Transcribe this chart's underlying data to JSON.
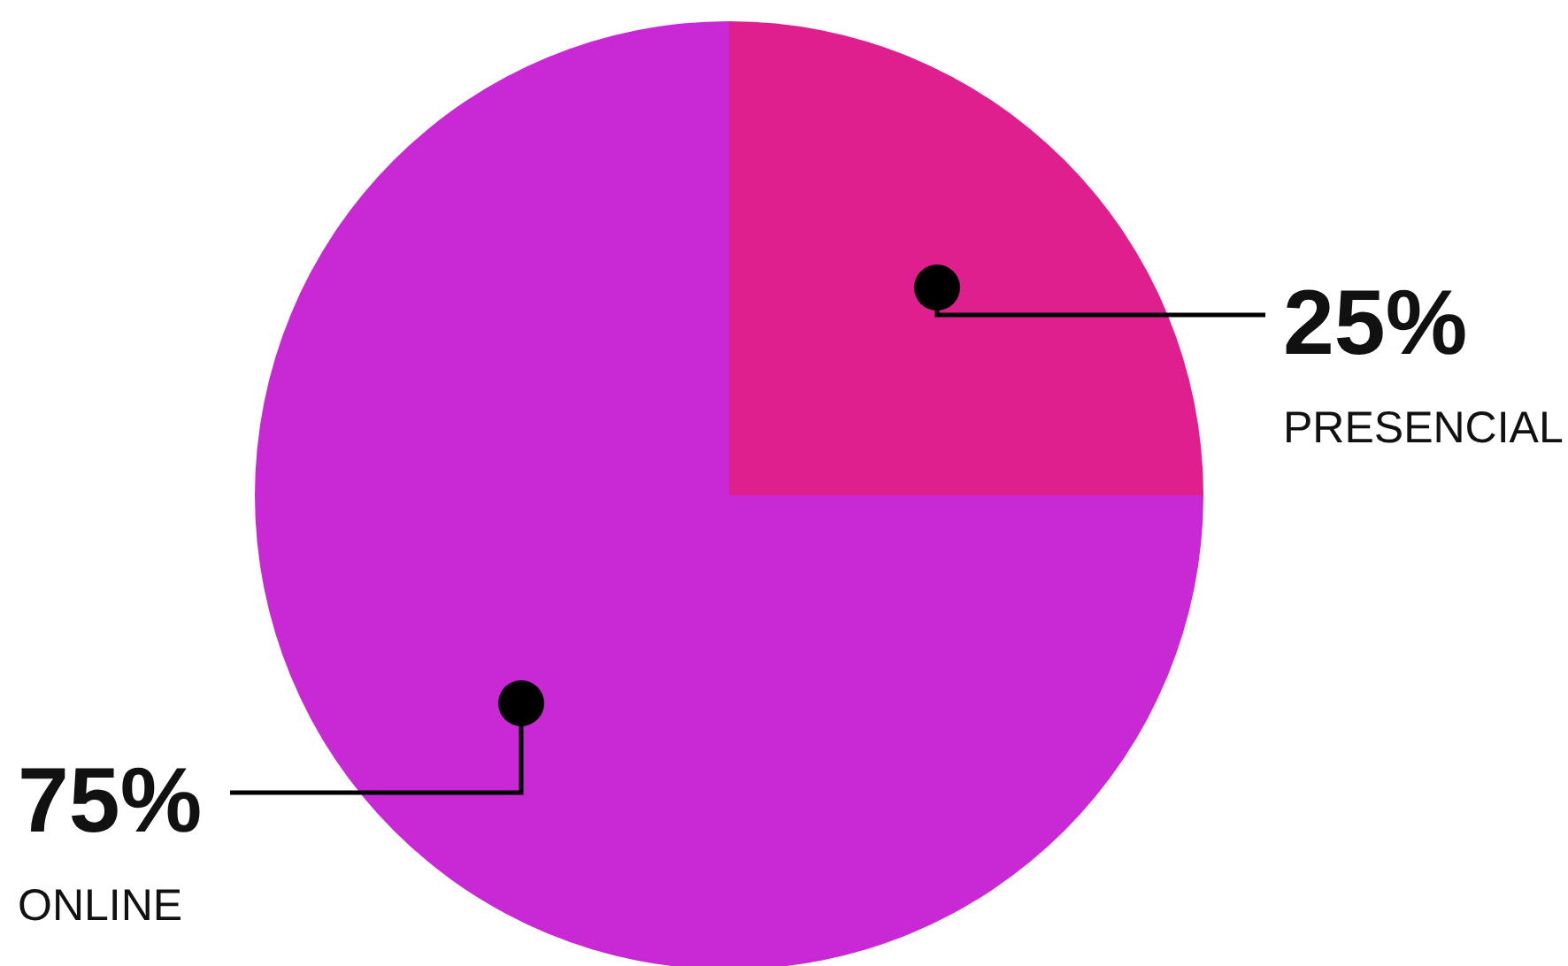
{
  "chart_data": {
    "type": "pie",
    "categories": [
      "PRESENCIAL",
      "ONLINE"
    ],
    "values": [
      25,
      75
    ],
    "colors": [
      "#e01f8e",
      "#c829d4"
    ],
    "value_labels": [
      "25%",
      "75%"
    ]
  }
}
